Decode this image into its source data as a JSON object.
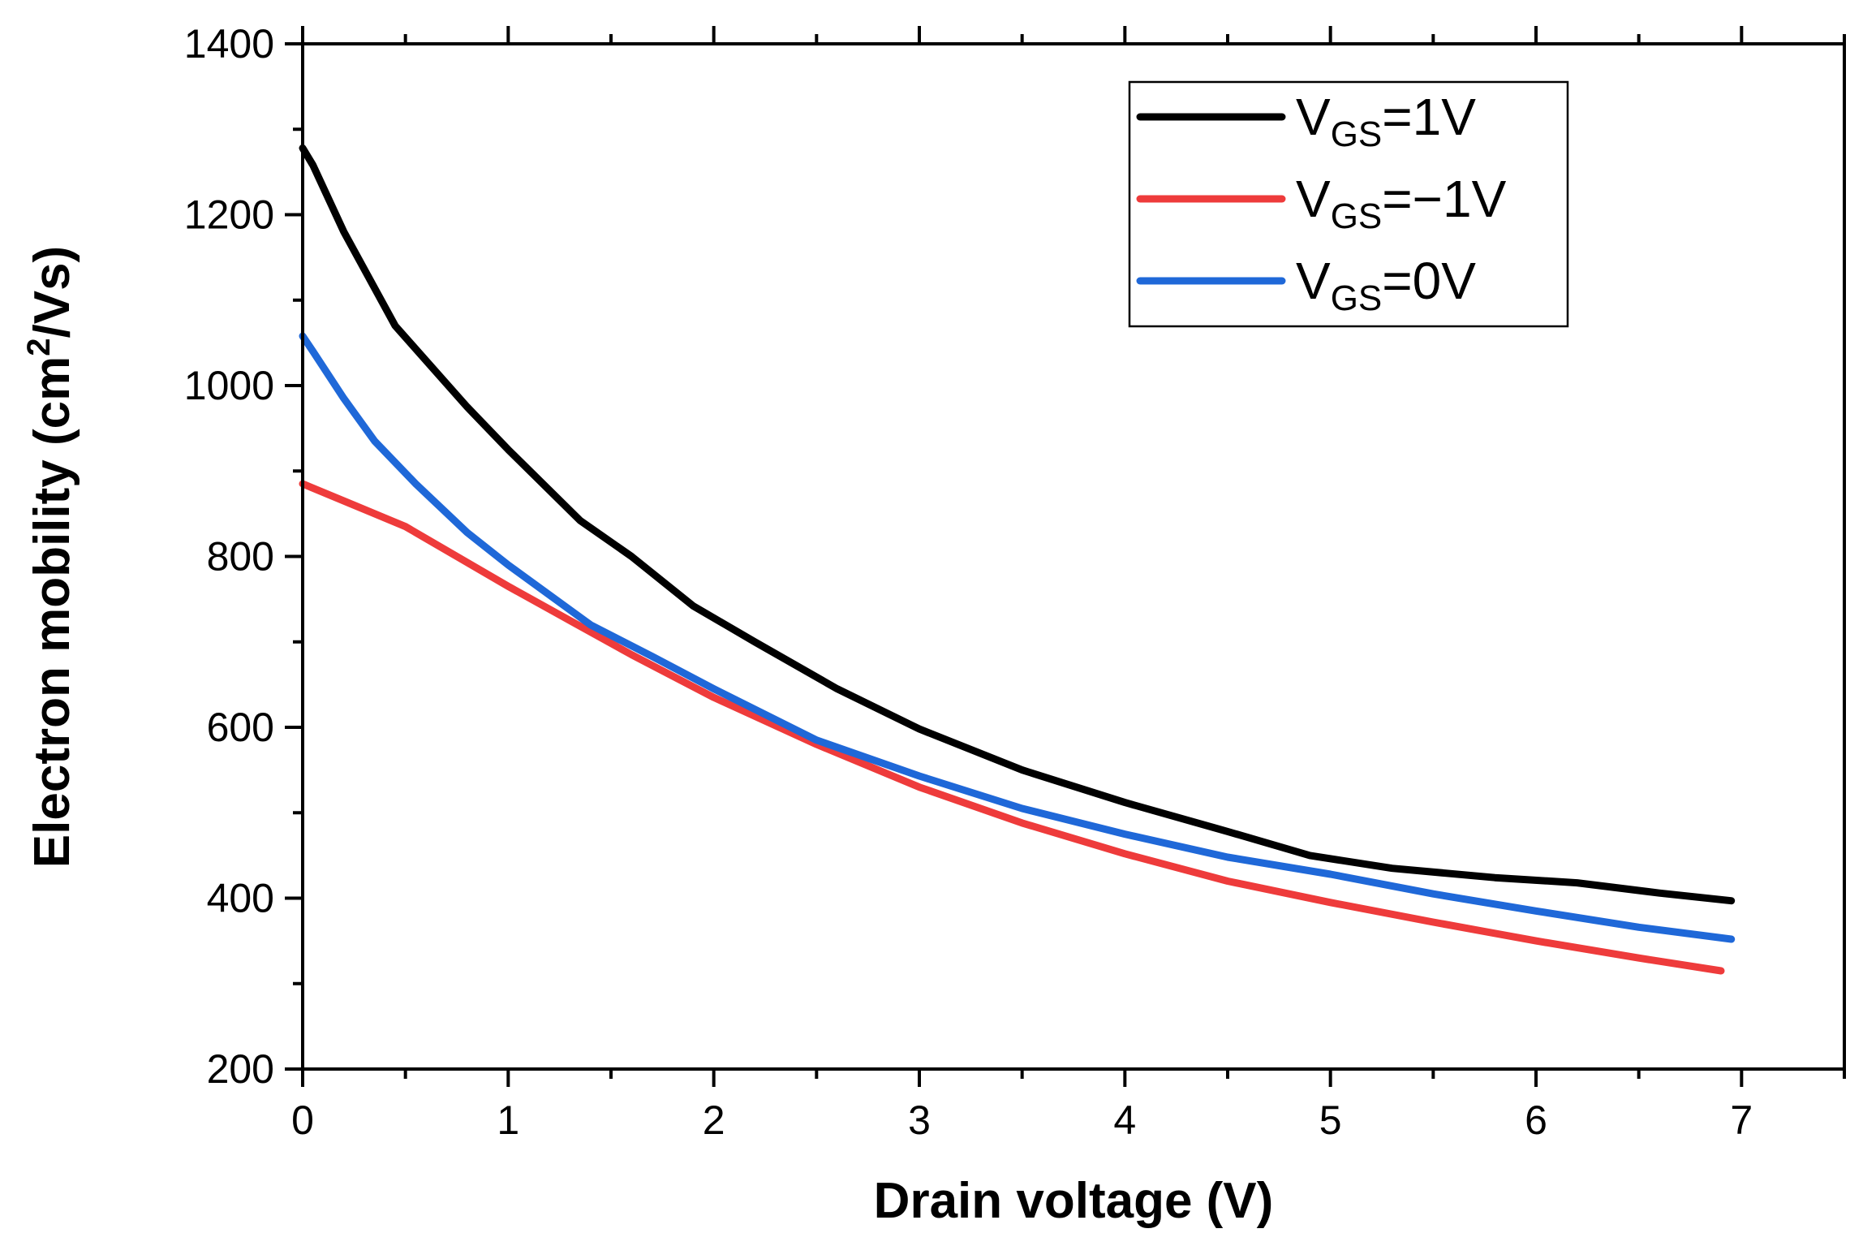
{
  "chart_data": {
    "type": "line",
    "title": "",
    "xlabel": "Drain voltage (V)",
    "ylabel_main": "Electron mobility (cm",
    "ylabel_sup": "2",
    "ylabel_tail": "/Vs)",
    "xlim": [
      0,
      7.5
    ],
    "ylim": [
      200,
      1400
    ],
    "xticks": [
      0,
      1,
      2,
      3,
      4,
      5,
      6,
      7
    ],
    "yticks": [
      200,
      400,
      600,
      800,
      1000,
      1200,
      1400
    ],
    "xtick_labels": [
      "0",
      "1",
      "2",
      "3",
      "4",
      "5",
      "6",
      "7"
    ],
    "ytick_labels": [
      "200",
      "400",
      "600",
      "800",
      "1000",
      "1200",
      "1400"
    ],
    "grid": false,
    "legend_position": "top-right",
    "series": [
      {
        "name": "V_GS=1V",
        "label_main": "V",
        "label_sub": "GS",
        "label_tail": "=1V",
        "color": "#000000",
        "x": [
          0,
          0.05,
          0.2,
          0.45,
          0.8,
          1.0,
          1.35,
          1.6,
          1.9,
          2.2,
          2.6,
          3.0,
          3.5,
          4.0,
          4.5,
          4.9,
          5.3,
          5.8,
          6.2,
          6.6,
          6.95
        ],
        "y": [
          1278,
          1258,
          1180,
          1070,
          975,
          925,
          842,
          800,
          742,
          700,
          645,
          598,
          550,
          512,
          478,
          450,
          435,
          424,
          418,
          406,
          397
        ]
      },
      {
        "name": "V_GS=−1V",
        "label_main": "V",
        "label_sub": "GS",
        "label_tail": "=−1V",
        "color": "#ee3b3b",
        "x": [
          0,
          0.25,
          0.5,
          0.75,
          1.0,
          1.3,
          1.6,
          2.0,
          2.5,
          3.0,
          3.5,
          4.0,
          4.5,
          5.0,
          5.5,
          6.0,
          6.5,
          6.9
        ],
        "y": [
          885,
          860,
          835,
          800,
          765,
          725,
          685,
          635,
          580,
          530,
          488,
          452,
          420,
          395,
          372,
          350,
          330,
          315
        ]
      },
      {
        "name": "V_GS=0V",
        "label_main": "V",
        "label_sub": "GS",
        "label_tail": "=0V",
        "color": "#1f68d8",
        "x": [
          0,
          0.05,
          0.2,
          0.35,
          0.55,
          0.8,
          1.0,
          1.4,
          1.7,
          2.0,
          2.5,
          3.0,
          3.5,
          4.0,
          4.5,
          5.0,
          5.5,
          6.0,
          6.5,
          6.95
        ],
        "y": [
          1058,
          1040,
          985,
          935,
          885,
          828,
          790,
          720,
          683,
          645,
          585,
          543,
          505,
          475,
          448,
          428,
          405,
          385,
          366,
          352
        ]
      }
    ]
  }
}
